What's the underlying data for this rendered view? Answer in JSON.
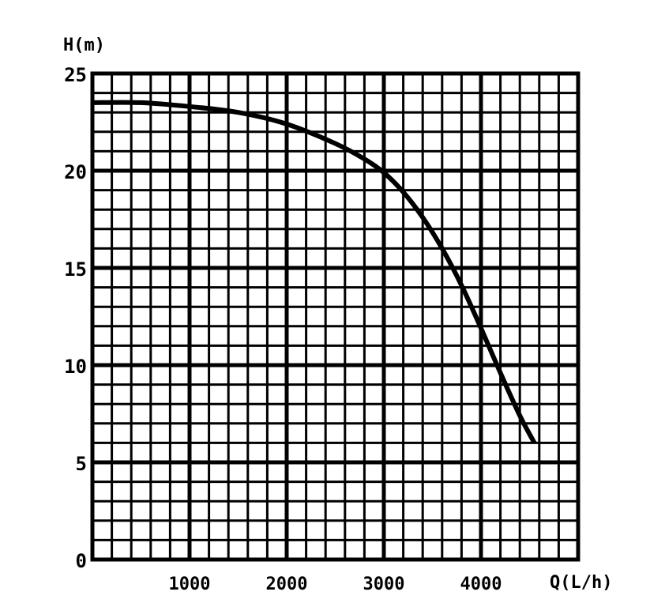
{
  "chart_data": {
    "type": "line",
    "ylabel": "H(m)",
    "xlabel": "Q(L/h)",
    "xlim": [
      0,
      5000
    ],
    "ylim": [
      0,
      25
    ],
    "x_ticks": [
      {
        "value": 1000,
        "label": "1000"
      },
      {
        "value": 2000,
        "label": "2000"
      },
      {
        "value": 3000,
        "label": "3000"
      },
      {
        "value": 4000,
        "label": "4000"
      }
    ],
    "y_ticks": [
      {
        "value": 0,
        "label": "0"
      },
      {
        "value": 5,
        "label": "5"
      },
      {
        "value": 10,
        "label": "10"
      },
      {
        "value": 15,
        "label": "15"
      },
      {
        "value": 20,
        "label": "20"
      },
      {
        "value": 25,
        "label": "25"
      }
    ],
    "grid": true,
    "grid_minor_x": 200,
    "grid_minor_y": 1,
    "series": [
      {
        "x": [
          0,
          500,
          1000,
          1500,
          2000,
          2500,
          2800,
          3000,
          3200,
          3400,
          3600,
          3800,
          4000,
          4200,
          4400,
          4550
        ],
        "y": [
          23.5,
          23.5,
          23.3,
          23.0,
          22.4,
          21.4,
          20.6,
          19.9,
          18.9,
          17.6,
          16.0,
          14.1,
          11.9,
          9.6,
          7.4,
          6.0
        ]
      }
    ],
    "colors": {
      "line": "#000000",
      "grid": "#000000",
      "background": "#ffffff"
    }
  }
}
